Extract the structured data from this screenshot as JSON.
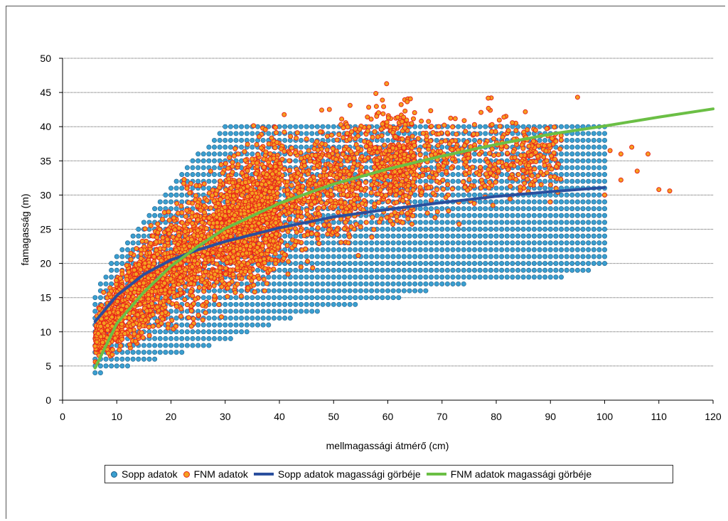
{
  "chart_data": {
    "type": "scatter",
    "title": "",
    "xlabel": "mellmagassági átmérő (cm)",
    "ylabel": "famagasság (m)",
    "xlim": [
      0,
      120
    ],
    "ylim": [
      0,
      50
    ],
    "xticks": [
      0,
      10,
      20,
      30,
      40,
      50,
      60,
      70,
      80,
      90,
      100,
      110,
      120
    ],
    "yticks": [
      0,
      5,
      10,
      15,
      20,
      25,
      30,
      35,
      40,
      45,
      50
    ],
    "grid": "horizontal",
    "legend_position": "bottom",
    "series": [
      {
        "name": "Sopp adatok",
        "kind": "scatter",
        "color": "#3a9fd0",
        "edge": "#1f5f8a",
        "grid_x": [
          6,
          100,
          1
        ],
        "grid_y": [
          4,
          40,
          1
        ],
        "envelope": {
          "x": [
            6,
            10,
            20,
            30,
            40,
            50,
            60,
            70,
            80,
            90,
            95,
            100
          ],
          "ymin": [
            4,
            5,
            7,
            9,
            12,
            14,
            15,
            17,
            18,
            18,
            19,
            20
          ],
          "ymax": [
            15,
            21,
            31,
            40,
            40,
            40,
            40,
            40,
            40,
            40,
            40,
            40
          ]
        }
      },
      {
        "name": "FNM adatok",
        "kind": "scatter",
        "color": "#f4a020",
        "edge": "#e8231a",
        "band": {
          "x": [
            6,
            10,
            15,
            20,
            30,
            40,
            50,
            60,
            70,
            80,
            90
          ],
          "ymin": [
            4,
            5,
            6,
            8,
            11,
            15,
            19,
            22,
            24,
            26,
            28
          ],
          "ymax": [
            14,
            20,
            27,
            31,
            38,
            43,
            46,
            47,
            46,
            46,
            44
          ]
        },
        "outliers": [
          [
            95,
            44.3
          ],
          [
            103,
            36
          ],
          [
            103,
            32.2
          ],
          [
            105,
            37
          ],
          [
            106,
            33.5
          ],
          [
            108,
            36
          ],
          [
            110,
            30.8
          ],
          [
            112,
            30.6
          ],
          [
            101,
            36.5
          ],
          [
            100,
            30
          ]
        ]
      },
      {
        "name": "Sopp adatok magassági görbéje",
        "kind": "line",
        "color": "#2a4f9e",
        "x": [
          6,
          10,
          15,
          20,
          25,
          30,
          40,
          50,
          60,
          70,
          80,
          90,
          100
        ],
        "y": [
          11.5,
          15.3,
          18.4,
          20.5,
          22.0,
          23.2,
          25.2,
          26.8,
          27.9,
          28.9,
          29.8,
          30.5,
          31.1
        ]
      },
      {
        "name": "FNM adatok magassági görbéje",
        "kind": "line",
        "color": "#6bbf45",
        "x": [
          6,
          10,
          15,
          20,
          25,
          30,
          40,
          50,
          60,
          70,
          80,
          90,
          100,
          110,
          120
        ],
        "y": [
          4.7,
          11.2,
          15.8,
          19.6,
          22.5,
          25.1,
          28.8,
          31.6,
          33.8,
          35.7,
          37.4,
          38.9,
          40.1,
          41.4,
          42.6
        ]
      }
    ]
  }
}
